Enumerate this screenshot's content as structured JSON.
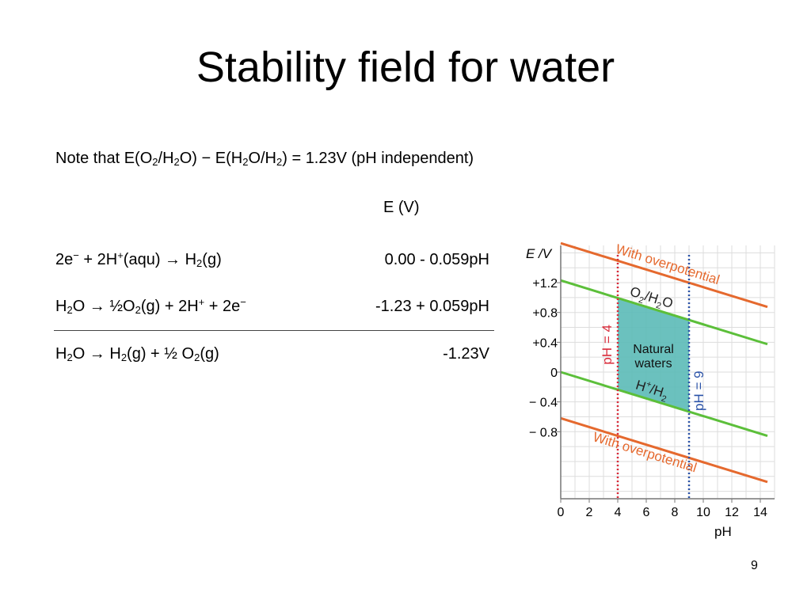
{
  "slide": {
    "title": "Stability field for water",
    "page_number": "9"
  },
  "note": {
    "prefix": "Note that E(O",
    "s1": "/H",
    "s2": "O) − E(H",
    "s3": "O/H",
    "s4": ")  =  1.23V  (pH independent)",
    "sub": "2"
  },
  "table": {
    "e_header": "E (V)",
    "rows": [
      {
        "equation": [
          "2e",
          "−",
          " + 2H",
          "+",
          "(aqu)  →  H",
          "2",
          "(g)"
        ],
        "e_value": "0.00 - 0.059pH"
      },
      {
        "equation": [
          "H",
          "2",
          "O  → ½O",
          "2",
          "(g) + 2H",
          "+",
          " + 2e",
          "−"
        ],
        "e_value": "-1.23 + 0.059pH"
      },
      {
        "equation": [
          "H",
          "2",
          "O  → H",
          "2",
          "(g) +  ½ O",
          "2",
          "(g)"
        ],
        "e_value": "-1.23V"
      }
    ]
  },
  "chart_data": {
    "type": "line",
    "ylabel": "E /V",
    "xlabel": "pH",
    "xlim": [
      0,
      15
    ],
    "ylim": [
      -1.7,
      1.7
    ],
    "x_ticks": [
      0,
      2,
      4,
      6,
      8,
      10,
      12,
      14
    ],
    "x_tick_labels": [
      "0",
      "2",
      "4",
      "6",
      "8",
      "10",
      "12",
      "14"
    ],
    "y_ticks": [
      1.2,
      0.8,
      0.4,
      0,
      -0.4,
      -0.8
    ],
    "y_tick_labels": [
      "+1.2",
      "+0.8",
      "+0.4",
      "0",
      "− 0.4",
      "− 0.8"
    ],
    "grid": true,
    "series": [
      {
        "name": "With  overpotential",
        "color": "#e5692e",
        "intercept": 1.73,
        "slope": -0.059
      },
      {
        "name": "O2/H2O",
        "color": "#5cbf3a",
        "intercept": 1.23,
        "slope": -0.059
      },
      {
        "name": "H+/H2",
        "color": "#5cbf3a",
        "intercept": 0.0,
        "slope": -0.059
      },
      {
        "name": "With  overpotential",
        "color": "#e5692e",
        "intercept": -0.62,
        "slope": -0.059
      }
    ],
    "region": {
      "label_line1": "Natural",
      "label_line2": "waters",
      "x_min": 4,
      "x_max": 9,
      "color": "#5bbab7"
    },
    "vlines": [
      {
        "x": 4,
        "label": "pH  =  4",
        "color": "#d92b3a"
      },
      {
        "x": 9,
        "label": "pH  =  9",
        "color": "#2a52a8"
      }
    ],
    "annotations": {
      "top_overpotential": "With  overpotential",
      "bottom_overpotential": "With  overpotential",
      "o2_label": "O",
      "o2_sub1": "2",
      "o2_mid": "/H",
      "o2_sub2": "2",
      "o2_end": "O",
      "h_label": "H",
      "h_sup": "+",
      "h_mid": "/H",
      "h_sub": "2"
    }
  }
}
